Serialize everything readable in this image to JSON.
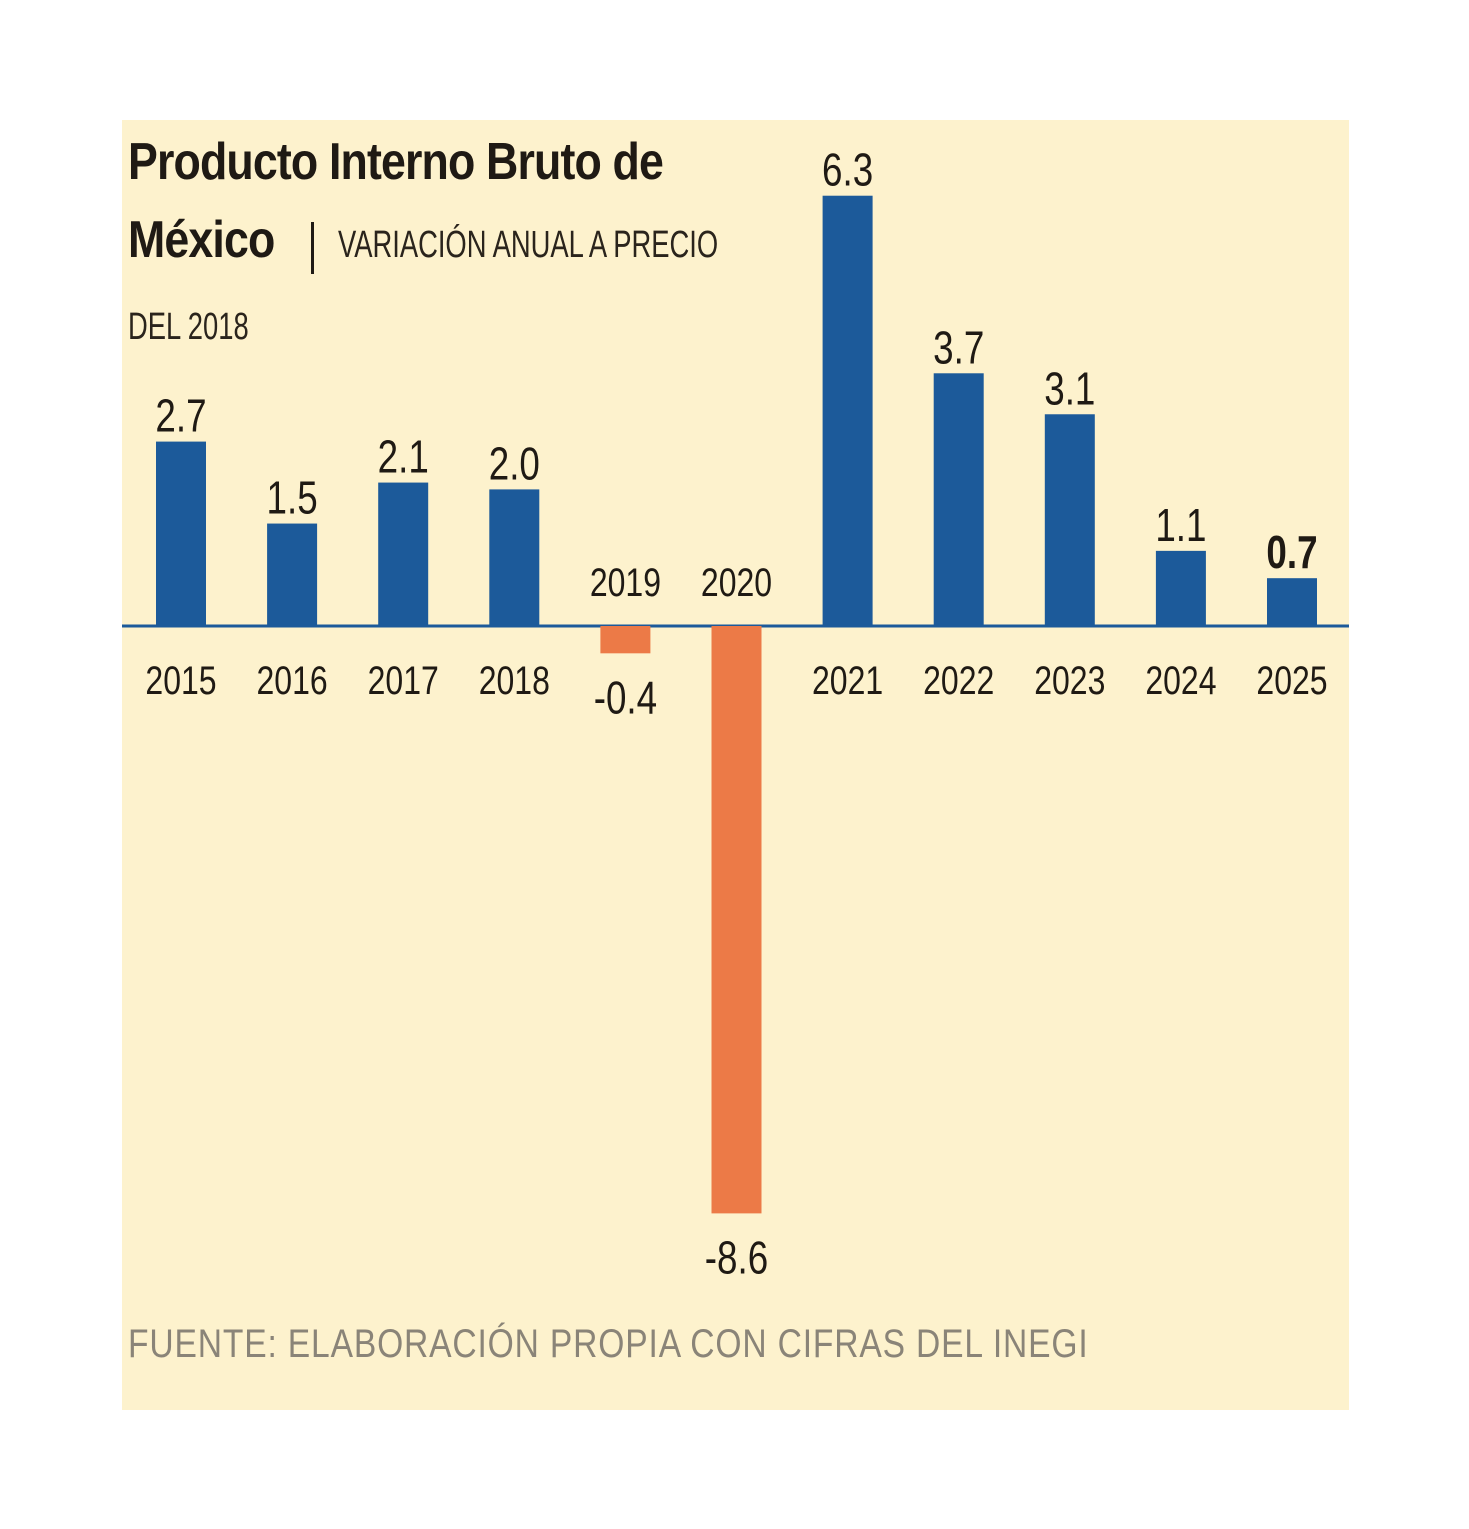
{
  "chart_data": {
    "type": "bar",
    "title_line1": "Producto Interno Bruto de",
    "title_line2": "México",
    "subtitle_line1": "VARIACIÓN ANUAL A PRECIO",
    "subtitle_line2": "DEL 2018",
    "source": "FUENTE: ELABORACIÓN PROPIA CON CIFRAS DEL INEGI",
    "categories": [
      "2015",
      "2016",
      "2017",
      "2018",
      "2019",
      "2020",
      "2021",
      "2022",
      "2023",
      "2024",
      "2025"
    ],
    "values": [
      2.7,
      1.5,
      2.1,
      2.0,
      -0.4,
      -8.6,
      6.3,
      3.7,
      3.1,
      1.1,
      0.7
    ],
    "value_labels": [
      "2.7",
      "1.5",
      "2.1",
      "2.0",
      "-0.4",
      "-8.6",
      "6.3",
      "3.7",
      "3.1",
      "1.1",
      "0.7"
    ],
    "highlight_index": 10,
    "colors": {
      "positive": "#1c5a9a",
      "negative": "#ec7a47",
      "background": "#fdf2cd",
      "baseline": "#1c5a9a"
    },
    "ylim": [
      -8.6,
      6.3
    ],
    "grid": false,
    "legend": "none"
  }
}
